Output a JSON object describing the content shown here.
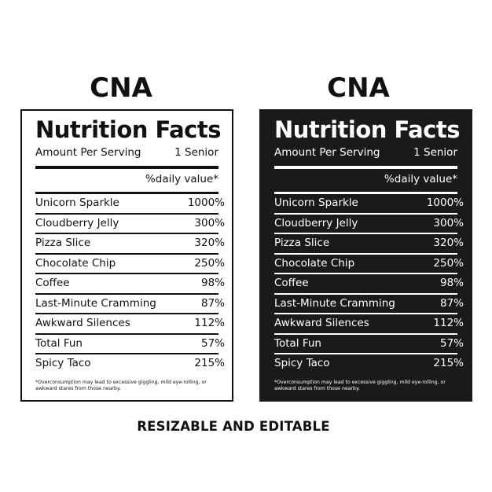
{
  "headings": [
    "CNA",
    "CNA"
  ],
  "label": {
    "title": "Nutrition Facts",
    "serving_label": "Amount Per Serving",
    "serving_value": "1 Senior",
    "daily_value": "%daily value*",
    "rows": [
      {
        "name": "Unicorn Sparkle",
        "value": "1000%"
      },
      {
        "name": "Cloudberry Jelly",
        "value": "300%"
      },
      {
        "name": "Pizza Slice",
        "value": "320%"
      },
      {
        "name": "Chocolate Chip",
        "value": "250%"
      },
      {
        "name": "Coffee",
        "value": "98%"
      },
      {
        "name": "Last-Minute Cramming",
        "value": "87%"
      },
      {
        "name": "Awkward Silences",
        "value": "112%"
      },
      {
        "name": "Total Fun",
        "value": "57%"
      },
      {
        "name": "Spicy Taco",
        "value": "215%"
      }
    ],
    "footnote": "*Overconsumption may lead to excessive giggling, mild eye-rolling, or awkward stares from those nearby."
  },
  "caption": "RESIZABLE AND EDITABLE",
  "colors": {
    "light_bg": "#ffffff",
    "dark_bg": "#1a1a1a",
    "ink": "#111111"
  }
}
